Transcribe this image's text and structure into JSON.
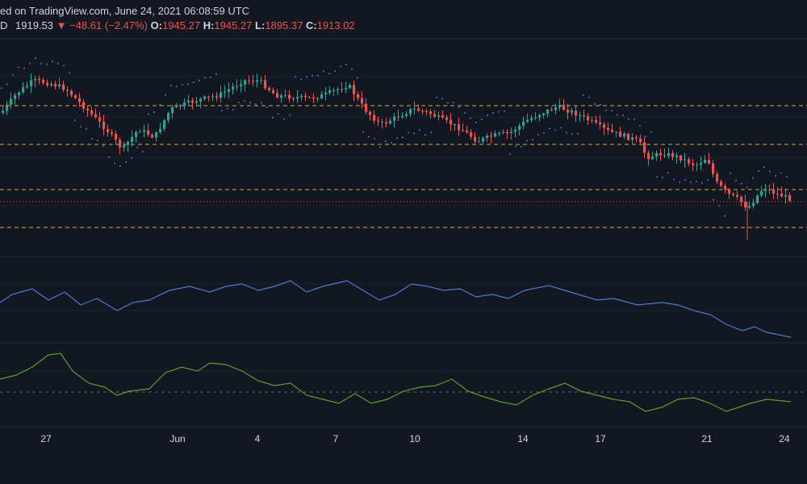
{
  "header": {
    "line1": "ed on TradingView.com, June 24, 2021 06:08:59 UTC",
    "symbol_suffix": "D",
    "last_price": "1919.53",
    "change_arrow": "▼",
    "change": "−48.61 (−2.47%)",
    "o_label": "O:",
    "o_value": "1945.27",
    "h_label": "H:",
    "h_value": "1945.27",
    "l_label": "L:",
    "l_value": "1895.37",
    "c_label": "C:",
    "c_value": "1913.02"
  },
  "colors": {
    "background": "#131722",
    "up": "#26a69a",
    "down": "#ef5350",
    "hline": "#c9b037",
    "price_line": "#ef5350",
    "sar": "#4a7bd0",
    "rsi_line": "#4a7bd0",
    "osc_line": "#5a9e2f",
    "grid": "#1e2230",
    "axis_text": "#d1d4dc"
  },
  "chart_data": {
    "type": "candlestick",
    "x_tick_labels": [
      "27",
      "Jun",
      "4",
      "7",
      "10",
      "14",
      "17",
      "21",
      "24"
    ],
    "horizontal_levels": "4 dashed yellow horizontal levels on price pane",
    "candles_count": 196,
    "price_indicator_overlay": "parabolic-sar-dots",
    "panes": [
      "price",
      "line-indicator-blue",
      "line-indicator-green"
    ],
    "grid": true
  }
}
